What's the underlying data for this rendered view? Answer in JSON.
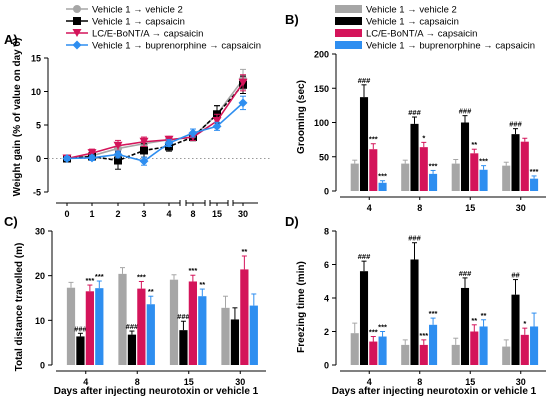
{
  "colors": {
    "vehicle2": "#a6a6a6",
    "capsaicin": "#000000",
    "bont": "#d4145a",
    "bup": "#2e8ef0"
  },
  "legend": [
    {
      "label": "Vehicle 1 → vehicle 2",
      "color": "#a6a6a6"
    },
    {
      "label": "Vehicle 1 → capsaicin",
      "color": "#000000"
    },
    {
      "label": "LC/E-BoNT/A → capsaicin",
      "color": "#d4145a"
    },
    {
      "label": "Vehicle 1 → buprenorphine → capsaicin",
      "color": "#2e8ef0"
    }
  ],
  "xlabel_shared": "Days after injecting neurotoxin or vehicle 1",
  "chart_data": [
    {
      "panel": "A)",
      "type": "line",
      "ylabel": "Weight gain (% of value on day 0)",
      "categories": [
        "0",
        "1",
        "2",
        "3",
        "4",
        "8",
        "15",
        "30"
      ],
      "ylim": [
        -5,
        15
      ],
      "yticks": [
        -5,
        0,
        5,
        10,
        15
      ],
      "series": [
        {
          "name": "Vehicle 1 → vehicle 2",
          "values": [
            0,
            0.4,
            1.5,
            2.2,
            2.8,
            3.2,
            6.6,
            11.8
          ],
          "errors": [
            0.5,
            0.4,
            0.6,
            0.5,
            0.5,
            0.6,
            1.2,
            1.5
          ]
        },
        {
          "name": "Vehicle 1 → capsaicin",
          "values": [
            0,
            0.3,
            -0.3,
            1.2,
            1.8,
            3.2,
            6.6,
            11.0
          ],
          "errors": [
            0.5,
            0.6,
            1.3,
            1.0,
            0.7,
            0.5,
            1.3,
            1.3
          ]
        },
        {
          "name": "LC/E-BoNT/A → capsaicin",
          "values": [
            0,
            0.8,
            1.9,
            2.5,
            2.8,
            3.2,
            5.6,
            11.3
          ],
          "errors": [
            0.3,
            0.6,
            0.8,
            0.7,
            0.5,
            0.5,
            1.0,
            1.2
          ]
        },
        {
          "name": "Vehicle 1 → buprenorphine → capsaicin",
          "values": [
            0,
            0.1,
            0.6,
            -0.4,
            2.3,
            3.8,
            4.8,
            8.3
          ],
          "errors": [
            0.3,
            0.4,
            0.5,
            0.6,
            0.5,
            0.6,
            0.6,
            1.0
          ]
        }
      ]
    },
    {
      "panel": "B)",
      "type": "bar",
      "ylabel": "Grooming (sec)",
      "categories": [
        "4",
        "8",
        "15",
        "30"
      ],
      "ylim": [
        0,
        200
      ],
      "yticks": [
        0,
        50,
        100,
        150,
        200
      ],
      "series": [
        {
          "name": "Vehicle 1 → vehicle 2",
          "values": [
            40,
            40,
            40,
            37
          ],
          "errors": [
            5,
            5,
            6,
            5
          ]
        },
        {
          "name": "Vehicle 1 → capsaicin",
          "values": [
            137,
            98,
            100,
            83
          ],
          "errors": [
            18,
            10,
            10,
            8
          ]
        },
        {
          "name": "LC/E-BoNT/A → capsaicin",
          "values": [
            61,
            64,
            55,
            72
          ],
          "errors": [
            8,
            7,
            6,
            5
          ]
        },
        {
          "name": "Vehicle 1 → buprenorphine → capsaicin",
          "values": [
            12,
            25,
            31,
            18
          ],
          "errors": [
            3,
            5,
            6,
            4
          ]
        }
      ],
      "annotations": [
        [
          "",
          "###",
          "***",
          "***"
        ],
        [
          "",
          "###",
          "*",
          "***"
        ],
        [
          "",
          "###",
          "**",
          "***"
        ],
        [
          "",
          "###",
          "",
          "***"
        ]
      ]
    },
    {
      "panel": "C)",
      "type": "bar",
      "ylabel": "Total distance travelled (m)",
      "categories": [
        "4",
        "8",
        "15",
        "30"
      ],
      "ylim": [
        0,
        30
      ],
      "yticks": [
        0,
        10,
        20,
        30
      ],
      "series": [
        {
          "name": "Vehicle 1 → vehicle 2",
          "values": [
            17.3,
            20.4,
            19.1,
            12.8
          ],
          "errors": [
            1.2,
            1.4,
            1.1,
            2.6
          ]
        },
        {
          "name": "Vehicle 1 → capsaicin",
          "values": [
            6.4,
            6.8,
            7.8,
            10.2
          ],
          "errors": [
            0.7,
            0.8,
            2.0,
            2.6
          ]
        },
        {
          "name": "LC/E-BoNT/A → capsaicin",
          "values": [
            16.5,
            17.1,
            18.7,
            21.4
          ],
          "errors": [
            1.4,
            1.6,
            1.4,
            3.0
          ]
        },
        {
          "name": "Vehicle 1 → buprenorphine → capsaicin",
          "values": [
            17.2,
            13.6,
            15.4,
            13.3
          ],
          "errors": [
            1.6,
            1.8,
            1.6,
            2.6
          ]
        }
      ],
      "annotations": [
        [
          "",
          "###",
          "***",
          "***"
        ],
        [
          "",
          "###",
          "***",
          "**"
        ],
        [
          "",
          "###",
          "***",
          "**"
        ],
        [
          "",
          "",
          "**",
          ""
        ]
      ]
    },
    {
      "panel": "D)",
      "type": "bar",
      "ylabel": "Freezing time (min)",
      "categories": [
        "4",
        "8",
        "15",
        "30"
      ],
      "ylim": [
        0,
        8
      ],
      "yticks": [
        0,
        2,
        4,
        6,
        8
      ],
      "series": [
        {
          "name": "Vehicle 1 → vehicle 2",
          "values": [
            1.9,
            1.2,
            1.2,
            1.1
          ],
          "errors": [
            0.6,
            0.3,
            0.4,
            0.4
          ]
        },
        {
          "name": "Vehicle 1 → capsaicin",
          "values": [
            5.6,
            6.3,
            4.6,
            4.2
          ],
          "errors": [
            0.6,
            1.0,
            0.6,
            0.9
          ]
        },
        {
          "name": "LC/E-BoNT/A → capsaicin",
          "values": [
            1.4,
            1.2,
            2.0,
            1.8
          ],
          "errors": [
            0.3,
            0.3,
            0.4,
            0.4
          ]
        },
        {
          "name": "Vehicle 1 → buprenorphine → capsaicin",
          "values": [
            1.7,
            2.4,
            2.3,
            2.3
          ],
          "errors": [
            0.3,
            0.4,
            0.4,
            0.8
          ]
        }
      ],
      "annotations": [
        [
          "",
          "###",
          "***",
          "***"
        ],
        [
          "",
          "###",
          "***",
          "***"
        ],
        [
          "",
          "###",
          "**",
          "**"
        ],
        [
          "",
          "##",
          "*",
          ""
        ]
      ]
    }
  ]
}
